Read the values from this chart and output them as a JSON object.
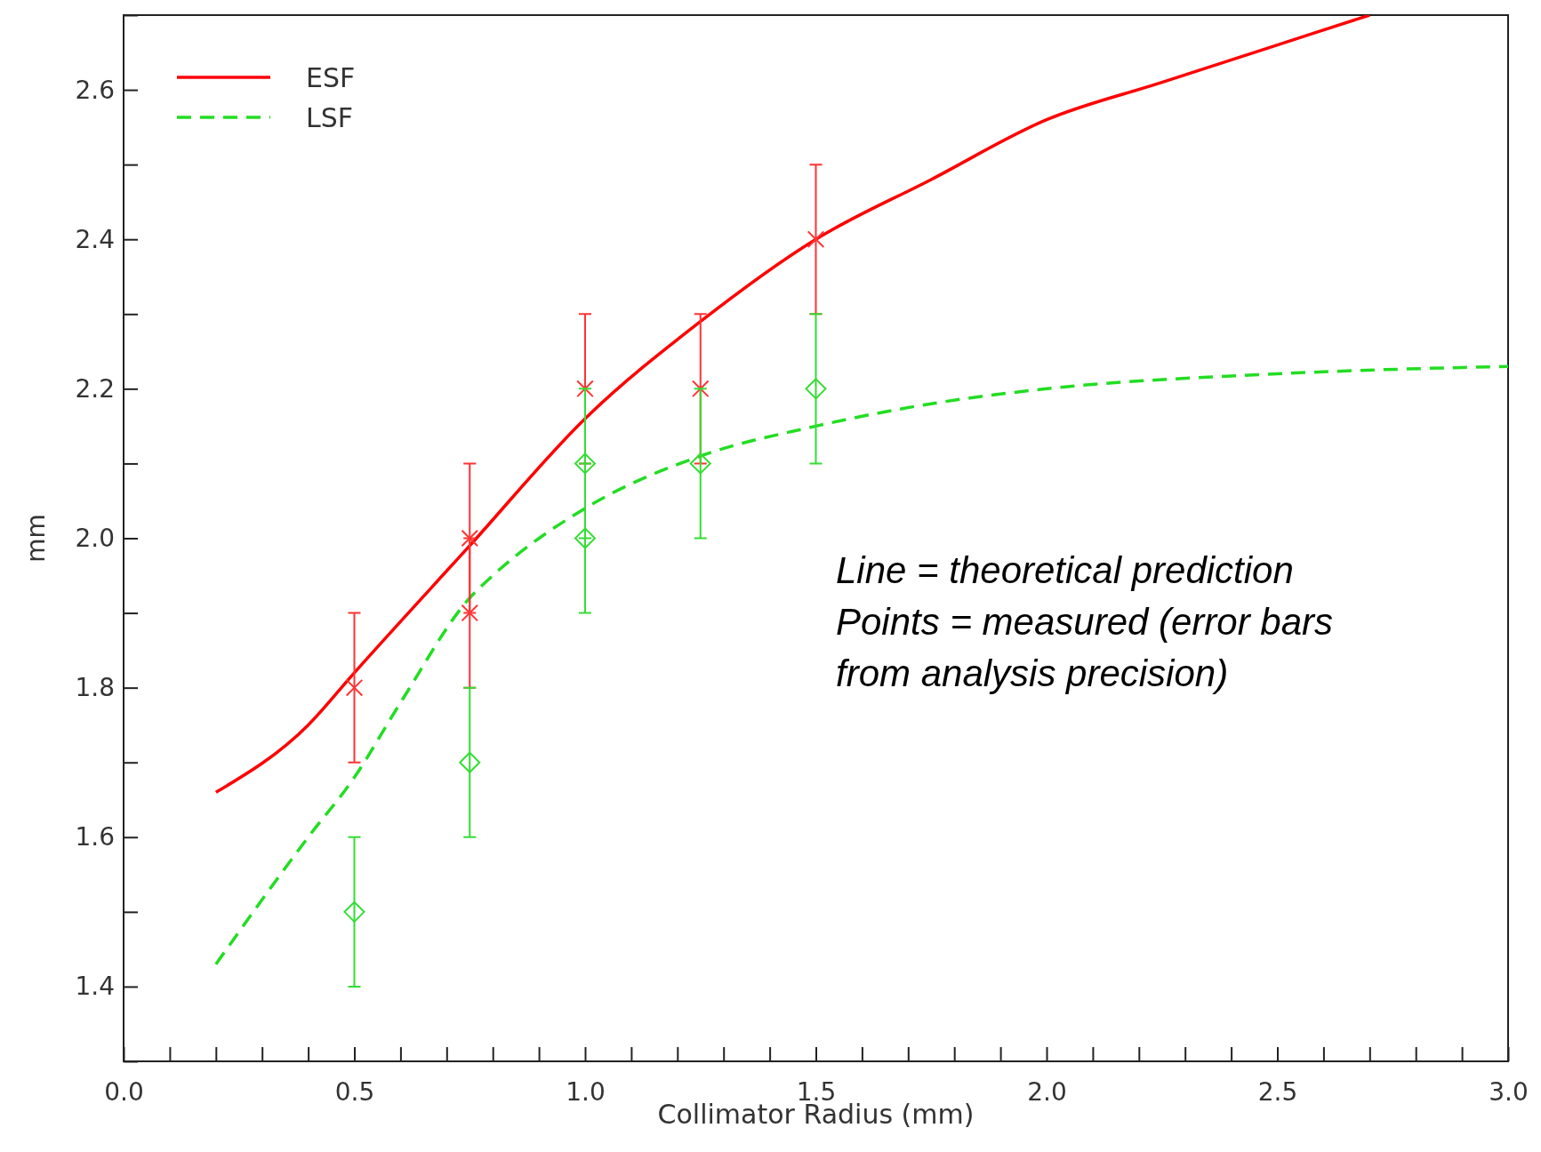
{
  "chart_data": {
    "type": "line",
    "xlabel": "Collimator Radius (mm)",
    "ylabel": "mm",
    "xlim": [
      0,
      3
    ],
    "ylim": [
      1.3,
      2.7
    ],
    "xticks": [
      {
        "value": 0,
        "label": "0.0"
      },
      {
        "value": 0.1,
        "label": null
      },
      {
        "value": 0.2,
        "label": null
      },
      {
        "value": 0.3,
        "label": null
      },
      {
        "value": 0.4,
        "label": null
      },
      0.5,
      {
        "value": 0.6,
        "label": null
      },
      {
        "value": 0.7,
        "label": null
      },
      {
        "value": 0.8,
        "label": null
      },
      {
        "value": 0.9,
        "label": null
      },
      {
        "value": 1,
        "label": "1.0"
      },
      {
        "value": 1.1,
        "label": null
      },
      {
        "value": 1.2,
        "label": null
      },
      {
        "value": 1.3,
        "label": null
      },
      {
        "value": 1.4,
        "label": null
      },
      1.5,
      {
        "value": 1.6,
        "label": null
      },
      {
        "value": 1.7,
        "label": null
      },
      {
        "value": 1.8,
        "label": null
      },
      {
        "value": 1.9,
        "label": null
      },
      {
        "value": 2,
        "label": "2.0"
      },
      {
        "value": 2.1,
        "label": null
      },
      {
        "value": 2.2,
        "label": null
      },
      {
        "value": 2.3,
        "label": null
      },
      {
        "value": 2.4,
        "label": null
      },
      2.5,
      {
        "value": 2.6,
        "label": null
      },
      {
        "value": 2.7,
        "label": null
      },
      {
        "value": 2.8,
        "label": null
      },
      {
        "value": 2.9,
        "label": null
      },
      {
        "value": 3,
        "label": "3.0"
      }
    ],
    "yticks": [
      {
        "value": 1.3,
        "label": null
      },
      1.4,
      {
        "value": 1.5,
        "label": null
      },
      1.6,
      {
        "value": 1.7,
        "label": null
      },
      1.8,
      {
        "value": 1.9,
        "label": null
      },
      {
        "value": 2,
        "label": "2.0"
      },
      {
        "value": 2.1,
        "label": null
      },
      2.2,
      {
        "value": 2.3,
        "label": null
      },
      2.4,
      {
        "value": 2.5,
        "label": null
      },
      2.6,
      {
        "value": 2.7,
        "label": null
      }
    ],
    "grid": false,
    "legend": "top left",
    "series": [
      {
        "name": "ESF",
        "color": "#ff0000",
        "line_style": "solid",
        "marker": "none",
        "x": [
          0.2,
          0.4,
          0.5,
          0.75,
          1.0,
          1.25,
          1.5,
          1.75,
          2.0,
          2.25,
          2.5,
          2.7
        ],
        "values": [
          1.66,
          1.75,
          1.82,
          1.99,
          2.16,
          2.29,
          2.4,
          2.48,
          2.56,
          2.61,
          2.66,
          2.7
        ]
      },
      {
        "name": "LSF",
        "color": "#22dd22",
        "line_style": "dashed",
        "marker": "none",
        "x": [
          0.2,
          0.4,
          0.5,
          0.6,
          0.75,
          0.8,
          1.0,
          1.25,
          1.5,
          1.75,
          2.0,
          2.5,
          3.0
        ],
        "values": [
          1.43,
          1.6,
          1.68,
          1.78,
          1.92,
          1.95,
          2.04,
          2.11,
          2.15,
          2.18,
          2.2,
          2.22,
          2.23
        ]
      },
      {
        "type": "scatter",
        "color": "#ff3333",
        "marker": "cross",
        "x": [
          0.5,
          0.75,
          0.75,
          1.0,
          1.25,
          1.5
        ],
        "values": [
          1.8,
          2.0,
          1.9,
          2.2,
          2.2,
          2.4
        ],
        "errors": [
          0.1,
          0.1,
          0.1,
          0.1,
          0.1,
          0.1
        ]
      },
      {
        "type": "scatter",
        "color": "#33dd33",
        "marker": "diamond",
        "x": [
          0.5,
          0.75,
          1.0,
          1.0,
          1.25,
          1.5
        ],
        "values": [
          1.5,
          1.7,
          2.1,
          2.0,
          2.1,
          2.2
        ],
        "errors": [
          0.1,
          0.1,
          0.1,
          0.1,
          0.1,
          0.1
        ]
      }
    ],
    "annotations": [
      "Line = theoretical prediction",
      "Points = measured (error bars",
      "from analysis precision)"
    ]
  }
}
